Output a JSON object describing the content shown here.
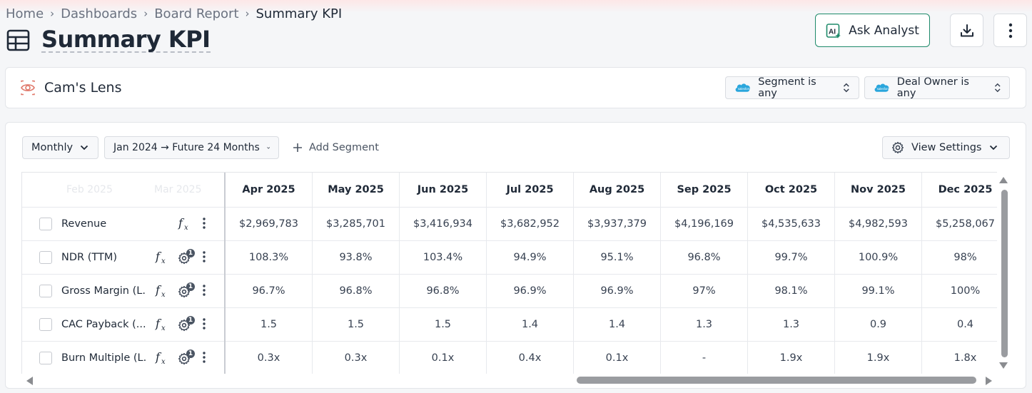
{
  "breadcrumb": [
    "Home",
    "Dashboards",
    "Board Report",
    "Summary KPI"
  ],
  "page_title": "Summary KPI",
  "header": {
    "ask_label": "Ask Analyst",
    "ask_icon": "ai-sparkle-icon",
    "download_icon": "download-icon",
    "more_icon": "more-vertical-icon"
  },
  "lens": {
    "name": "Cam's Lens",
    "icon": "eye-icon",
    "filters": [
      {
        "label": "Segment is any",
        "icon": "salesforce-icon"
      },
      {
        "label": "Deal Owner is any",
        "icon": "salesforce-icon"
      }
    ]
  },
  "controls": {
    "period": "Monthly",
    "range": "Jan 2024 → Future 24 Months",
    "add_segment": "Add Segment",
    "view_settings": "View Settings"
  },
  "table": {
    "ghost_headers": [
      "Feb 2025",
      "Mar 2025"
    ],
    "columns": [
      "Apr 2025",
      "May 2025",
      "Jun 2025",
      "Jul 2025",
      "Aug 2025",
      "Sep 2025",
      "Oct 2025",
      "Nov 2025",
      "Dec 2025"
    ],
    "rows": [
      {
        "name": "Revenue",
        "gear_badge": "",
        "values": [
          "$2,969,783",
          "$3,285,701",
          "$3,416,934",
          "$3,682,952",
          "$3,937,379",
          "$4,196,169",
          "$4,535,633",
          "$4,982,593",
          "$5,258,067"
        ]
      },
      {
        "name": "NDR (TTM)",
        "gear_badge": "1",
        "values": [
          "108.3%",
          "93.8%",
          "103.4%",
          "94.9%",
          "95.1%",
          "96.8%",
          "99.7%",
          "100.9%",
          "98%"
        ]
      },
      {
        "name": "Gross Margin (L...",
        "gear_badge": "1",
        "values": [
          "96.7%",
          "96.8%",
          "96.8%",
          "96.9%",
          "96.9%",
          "97%",
          "98.1%",
          "99.1%",
          "100%"
        ]
      },
      {
        "name": "CAC Payback (...",
        "gear_badge": "1",
        "values": [
          "1.5",
          "1.5",
          "1.5",
          "1.4",
          "1.4",
          "1.3",
          "1.3",
          "0.9",
          "0.4"
        ]
      },
      {
        "name": "Burn Multiple (L...",
        "gear_badge": "1",
        "values": [
          "0.3x",
          "0.3x",
          "0.1x",
          "0.4x",
          "0.1x",
          "-",
          "1.9x",
          "1.9x",
          "1.8x"
        ]
      }
    ]
  },
  "colors": {
    "ask_border": "#1e8a6a",
    "salesforce_blue": "#2aa6dc",
    "lens_icon": "#e0786a"
  }
}
